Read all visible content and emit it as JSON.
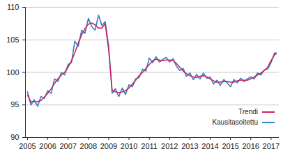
{
  "chart_data": {
    "type": "line",
    "x": [
      2005.0,
      2005.17,
      2005.33,
      2005.5,
      2005.67,
      2005.83,
      2006.0,
      2006.17,
      2006.33,
      2006.5,
      2006.67,
      2006.83,
      2007.0,
      2007.17,
      2007.33,
      2007.5,
      2007.67,
      2007.83,
      2008.0,
      2008.17,
      2008.33,
      2008.5,
      2008.67,
      2008.83,
      2009.0,
      2009.17,
      2009.33,
      2009.5,
      2009.67,
      2009.83,
      2010.0,
      2010.17,
      2010.33,
      2010.5,
      2010.67,
      2010.83,
      2011.0,
      2011.17,
      2011.33,
      2011.5,
      2011.67,
      2011.83,
      2012.0,
      2012.17,
      2012.33,
      2012.5,
      2012.67,
      2012.83,
      2013.0,
      2013.17,
      2013.33,
      2013.5,
      2013.67,
      2013.83,
      2014.0,
      2014.17,
      2014.33,
      2014.5,
      2014.67,
      2014.83,
      2015.0,
      2015.17,
      2015.33,
      2015.5,
      2015.67,
      2015.83,
      2016.0,
      2016.17,
      2016.33,
      2016.5,
      2016.67,
      2016.83,
      2017.0,
      2017.17,
      2017.25
    ],
    "series": [
      {
        "name": "Trendi",
        "color": "#d0215f",
        "values": [
          96.5,
          95.5,
          95.5,
          95.5,
          95.7,
          96.2,
          96.8,
          97.5,
          98.3,
          99.0,
          99.6,
          100.0,
          100.8,
          101.8,
          103.0,
          104.5,
          105.8,
          106.7,
          107.4,
          107.6,
          107.3,
          106.8,
          106.8,
          107.5,
          103.5,
          97.3,
          97.0,
          96.9,
          97.0,
          97.2,
          97.6,
          98.2,
          98.8,
          99.5,
          100.0,
          100.6,
          101.2,
          101.8,
          102.0,
          101.9,
          101.8,
          101.9,
          101.9,
          101.8,
          101.4,
          100.8,
          100.2,
          99.8,
          99.5,
          99.3,
          99.2,
          99.4,
          99.5,
          99.3,
          99.0,
          98.7,
          98.5,
          98.5,
          98.6,
          98.6,
          98.5,
          98.5,
          98.7,
          98.8,
          98.8,
          98.8,
          99.0,
          99.3,
          99.6,
          99.9,
          100.3,
          100.8,
          101.8,
          102.7,
          103.0
        ]
      },
      {
        "name": "Kausitasoitettu",
        "color": "#2f7fc1",
        "values": [
          97.0,
          95.0,
          95.8,
          94.8,
          96.3,
          96.0,
          97.2,
          96.8,
          99.0,
          98.6,
          100.0,
          99.6,
          101.2,
          101.5,
          104.8,
          104.0,
          106.5,
          106.0,
          108.3,
          107.0,
          106.5,
          108.8,
          107.2,
          107.8,
          104.0,
          96.8,
          97.5,
          96.3,
          97.6,
          96.6,
          98.1,
          97.8,
          99.0,
          99.2,
          100.5,
          100.2,
          102.2,
          101.5,
          102.4,
          101.6,
          102.0,
          102.3,
          101.6,
          102.1,
          101.0,
          100.3,
          100.6,
          99.4,
          99.9,
          98.9,
          99.7,
          99.0,
          99.9,
          99.1,
          99.3,
          98.2,
          98.8,
          98.0,
          98.9,
          98.4,
          97.8,
          98.9,
          98.4,
          99.1,
          98.6,
          99.0,
          99.3,
          99.0,
          99.9,
          99.6,
          100.4,
          100.5,
          101.5,
          103.0,
          102.8
        ]
      }
    ],
    "xlim": [
      2004.9,
      2017.4
    ],
    "xticks": [
      2005,
      2006,
      2007,
      2008,
      2009,
      2010,
      2011,
      2012,
      2013,
      2014,
      2015,
      2016,
      2017
    ],
    "ylim": [
      90,
      110
    ],
    "yticks": [
      90,
      95,
      100,
      105,
      110
    ],
    "grid": true,
    "legend": "bottom-right"
  }
}
